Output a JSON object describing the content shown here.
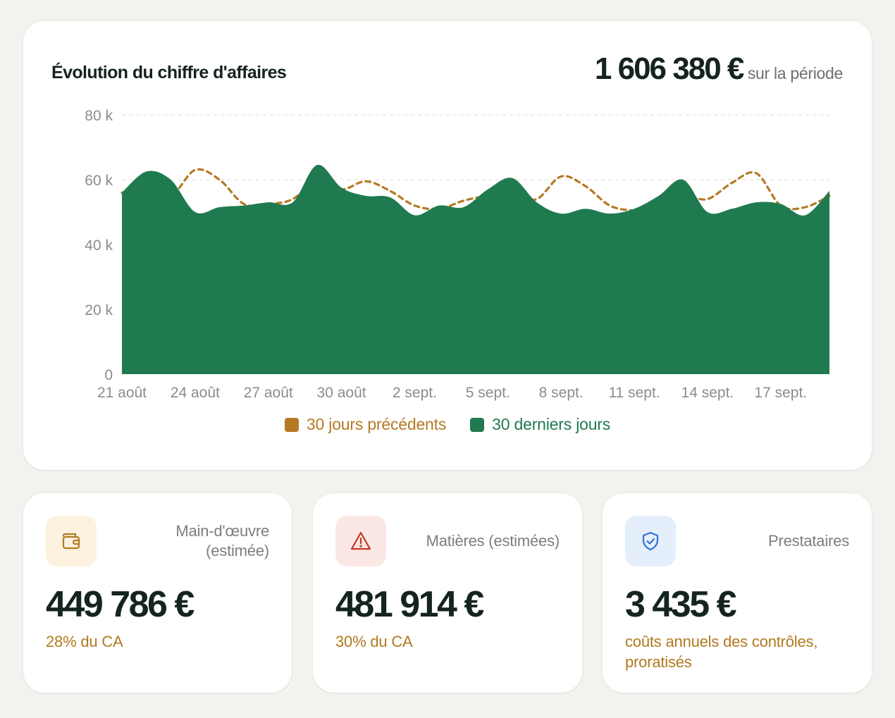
{
  "colors": {
    "current": "#207a50",
    "previous": "#b57a24",
    "wallet_bg": "#fdf1e0",
    "warning_bg": "#fbe7e3",
    "warning": "#c0392b",
    "shield_bg": "#e5eefb",
    "shield": "#2b74d9",
    "accent_text": "#b07a1f"
  },
  "chart_card": {
    "title": "Évolution du chiffre d'affaires",
    "total": "1 606 380 €",
    "total_suffix": "sur la période"
  },
  "chart_data": {
    "type": "area",
    "title": "Évolution du chiffre d'affaires",
    "ylim": [
      0,
      80000
    ],
    "y_ticks": [
      0,
      20000,
      40000,
      60000,
      80000
    ],
    "y_tick_labels": [
      "0",
      "20 k",
      "40 k",
      "60 k",
      "80 k"
    ],
    "x_tick_labels": [
      "21 août",
      "24 août",
      "27 août",
      "30 août",
      "2 sept.",
      "5 sept.",
      "8 sept.",
      "11 sept.",
      "14 sept.",
      "17 sept."
    ],
    "x_tick_positions": [
      0,
      3,
      6,
      9,
      12,
      15,
      18,
      21,
      24,
      27
    ],
    "grid": "horizontal-dashed",
    "legend_position": "bottom-center",
    "series": [
      {
        "name": "30 jours précédents",
        "style": "dashed-line",
        "values": [
          56000,
          58000,
          55000,
          63000,
          60000,
          52500,
          52500,
          54000,
          60000,
          57000,
          59500,
          56500,
          52000,
          51000,
          53500,
          55000,
          55000,
          54000,
          61000,
          58000,
          52000,
          50500,
          51000,
          55000,
          54000,
          59000,
          62000,
          52000,
          51500,
          55000
        ]
      },
      {
        "name": "30 derniers jours",
        "style": "filled-area",
        "values": [
          56000,
          62500,
          60000,
          50000,
          51500,
          52000,
          53000,
          53000,
          64500,
          57500,
          55000,
          54500,
          49000,
          52000,
          51500,
          57000,
          60500,
          53000,
          49500,
          51000,
          49500,
          51000,
          55000,
          60000,
          50000,
          51000,
          53000,
          52500,
          49000,
          56500
        ]
      }
    ]
  },
  "stats": [
    {
      "icon": "wallet-icon",
      "label_lines": [
        "Main-d'œuvre",
        "(estimée)"
      ],
      "value": "449 786 €",
      "sub": "28% du CA"
    },
    {
      "icon": "warning-icon",
      "label_lines": [
        "Matières (estimées)"
      ],
      "value": "481 914 €",
      "sub": "30% du CA"
    },
    {
      "icon": "shield-check-icon",
      "label_lines": [
        "Prestataires"
      ],
      "value": "3 435 €",
      "sub": "coûts annuels des contrôles, proratisés"
    }
  ]
}
